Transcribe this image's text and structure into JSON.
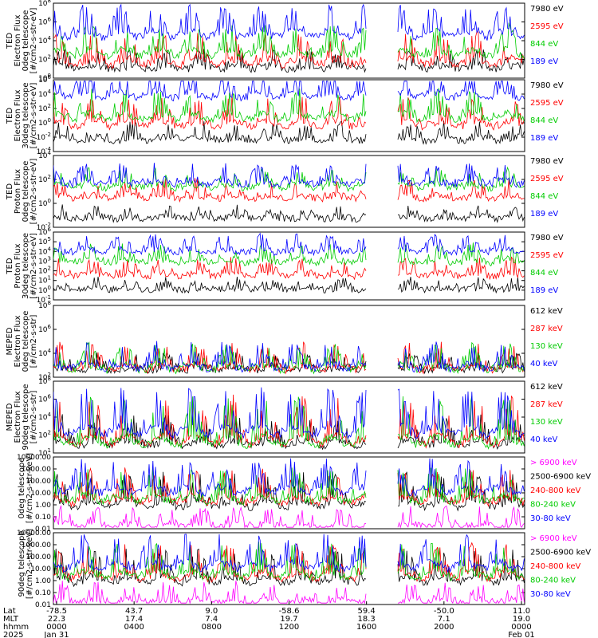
{
  "chart_data": [
    {
      "type": "line",
      "panel": "ted-electron-0",
      "ylabel": [
        "TED",
        "Electron Flux",
        "0deg telescope",
        "[#/cm2-s-str-eV]"
      ],
      "yticks": [
        "10^0",
        "10^2",
        "10^4",
        "10^6",
        "10^8"
      ],
      "ylim": [
        0,
        8
      ],
      "legend": [
        {
          "label": "7980 eV",
          "color": "#000000"
        },
        {
          "label": "2595 eV",
          "color": "#ff0000"
        },
        {
          "label": "844 eV",
          "color": "#00cc00"
        },
        {
          "label": "189 eV",
          "color": "#0000ff"
        }
      ]
    },
    {
      "type": "line",
      "panel": "ted-electron-30",
      "ylabel": [
        "TED",
        "Electron Flux",
        "30deg telescope",
        "[#/cm2-s-str-eV]"
      ],
      "yticks": [
        "10^-4",
        "10^-2",
        "10^0",
        "10^2",
        "10^4",
        "10^6"
      ],
      "ylim": [
        -4,
        6
      ],
      "legend": [
        {
          "label": "7980 eV",
          "color": "#000000"
        },
        {
          "label": "2595 eV",
          "color": "#ff0000"
        },
        {
          "label": "844 eV",
          "color": "#00cc00"
        },
        {
          "label": "189 eV",
          "color": "#0000ff"
        }
      ]
    },
    {
      "type": "line",
      "panel": "ted-proton-0",
      "ylabel": [
        "TED",
        "Proton Flux",
        "0deg telescope",
        "[#/cm2-s-str-eV]"
      ],
      "yticks": [
        "10^-2",
        "10^0",
        "10^2",
        "10^4"
      ],
      "ylim": [
        -2,
        4
      ],
      "legend": [
        {
          "label": "7980 eV",
          "color": "#000000"
        },
        {
          "label": "2595 eV",
          "color": "#ff0000"
        },
        {
          "label": "844 eV",
          "color": "#00cc00"
        },
        {
          "label": "189 eV",
          "color": "#0000ff"
        }
      ]
    },
    {
      "type": "line",
      "panel": "ted-proton-30",
      "ylabel": [
        "TED",
        "Proton Flux",
        "30deg telescope",
        "[#/cm2-s-str-eV]"
      ],
      "yticks": [
        "10^-1",
        "10^0",
        "10^1",
        "10^2",
        "10^3",
        "10^4",
        "10^5",
        "10^6"
      ],
      "ylim": [
        -1,
        6
      ],
      "legend": [
        {
          "label": "7980 eV",
          "color": "#000000"
        },
        {
          "label": "2595 eV",
          "color": "#ff0000"
        },
        {
          "label": "844 eV",
          "color": "#00cc00"
        },
        {
          "label": "189 eV",
          "color": "#0000ff"
        }
      ]
    },
    {
      "type": "line",
      "panel": "meped-electron-0",
      "ylabel": [
        "MEPED",
        "Electron Flux",
        "0deg telescope",
        "[#/cm2-s-str]"
      ],
      "yticks": [
        "10^2",
        "10^4",
        "10^6",
        "10^8"
      ],
      "ylim": [
        1,
        8
      ],
      "legend": [
        {
          "label": "612 keV",
          "color": "#000000"
        },
        {
          "label": "287 keV",
          "color": "#ff0000"
        },
        {
          "label": "130 keV",
          "color": "#00cc00"
        },
        {
          "label": "40 keV",
          "color": "#0000ff"
        }
      ]
    },
    {
      "type": "line",
      "panel": "meped-electron-90",
      "ylabel": [
        "MEPED",
        "Electron Flux",
        "90deg telescope",
        "[#/cm2-s-str]"
      ],
      "yticks": [
        "10^1",
        "10^2",
        "10^4",
        "10^6",
        "10^8"
      ],
      "ylim": [
        1,
        8
      ],
      "legend": [
        {
          "label": "612 keV",
          "color": "#000000"
        },
        {
          "label": "287 keV",
          "color": "#ff0000"
        },
        {
          "label": "130 keV",
          "color": "#00cc00"
        },
        {
          "label": "40 keV",
          "color": "#0000ff"
        }
      ]
    },
    {
      "type": "line",
      "panel": "meped-proton-0",
      "ylabel": [
        "0deg telescope",
        "[#/cm2-s-str-keV]"
      ],
      "yticks": [
        "0.01",
        "0.10",
        "1.00",
        "10.00",
        "100.00",
        "1000.00",
        "10000.00"
      ],
      "ylim": [
        -2,
        4
      ],
      "legend": [
        {
          "label": "> 6900 keV",
          "color": "#ff00ff"
        },
        {
          "label": "2500-6900 keV",
          "color": "#000000"
        },
        {
          "label": "240-800 keV",
          "color": "#ff0000"
        },
        {
          "label": "80-240 keV",
          "color": "#00cc00"
        },
        {
          "label": "30-80 keV",
          "color": "#0000ff"
        }
      ]
    },
    {
      "type": "line",
      "panel": "meped-proton-90",
      "ylabel": [
        "90deg telescope",
        "[#/cm2-s-str-keV]"
      ],
      "yticks": [
        "0.01",
        "0.10",
        "1.00",
        "10.00",
        "100.00",
        "1000.00",
        "10000.00"
      ],
      "ylim": [
        -2,
        4
      ],
      "legend": [
        {
          "label": "> 6900 keV",
          "color": "#ff00ff"
        },
        {
          "label": "2500-6900 keV",
          "color": "#000000"
        },
        {
          "label": "240-800 keV",
          "color": "#ff0000"
        },
        {
          "label": "80-240 keV",
          "color": "#00cc00"
        },
        {
          "label": "30-80 keV",
          "color": "#0000ff"
        }
      ]
    }
  ],
  "x_axis": {
    "row_labels": [
      "Lat",
      "MLT",
      "hhmm",
      "2025"
    ],
    "ticks": [
      {
        "lat": "-78.5",
        "mlt": "22.3",
        "hhmm": "0000",
        "date": "Jan 31"
      },
      {
        "lat": "43.7",
        "mlt": "17.4",
        "hhmm": "0400",
        "date": ""
      },
      {
        "lat": "9.0",
        "mlt": "7.4",
        "hhmm": "0800",
        "date": ""
      },
      {
        "lat": "-58.6",
        "mlt": "19.7",
        "hhmm": "1200",
        "date": ""
      },
      {
        "lat": "59.4",
        "mlt": "18.3",
        "hhmm": "1600",
        "date": ""
      },
      {
        "lat": "-50.0",
        "mlt": "7.1",
        "hhmm": "2000",
        "date": ""
      },
      {
        "lat": "11.0",
        "mlt": "19.0",
        "hhmm": "0000",
        "date": "Feb 01"
      }
    ]
  }
}
